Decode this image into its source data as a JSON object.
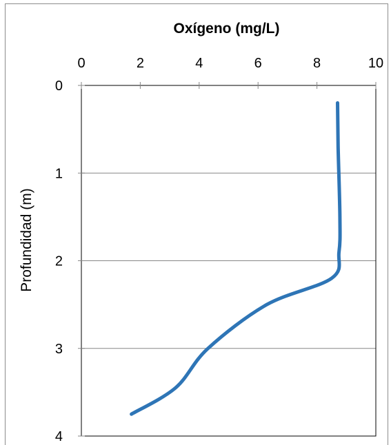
{
  "chart_data": {
    "type": "line",
    "title": "Oxígeno (mg/L)",
    "xlabel": "",
    "ylabel": "Profundidad (m)",
    "xlim": [
      0,
      10
    ],
    "ylim": [
      0,
      4
    ],
    "y_inverted": true,
    "x_axis_position": "top",
    "x_ticks": [
      0,
      2,
      4,
      6,
      8,
      10
    ],
    "y_ticks": [
      0,
      1,
      2,
      3,
      4
    ],
    "grid": "horizontal",
    "legend": "none",
    "series": [
      {
        "color": "#2e75b6",
        "x": [
          8.7,
          8.72,
          8.78,
          8.75,
          8.5,
          6.3,
          4.3,
          3.2,
          1.7
        ],
        "y": [
          0.2,
          0.7,
          1.5,
          1.9,
          2.2,
          2.5,
          3.0,
          3.45,
          3.75
        ]
      }
    ]
  }
}
